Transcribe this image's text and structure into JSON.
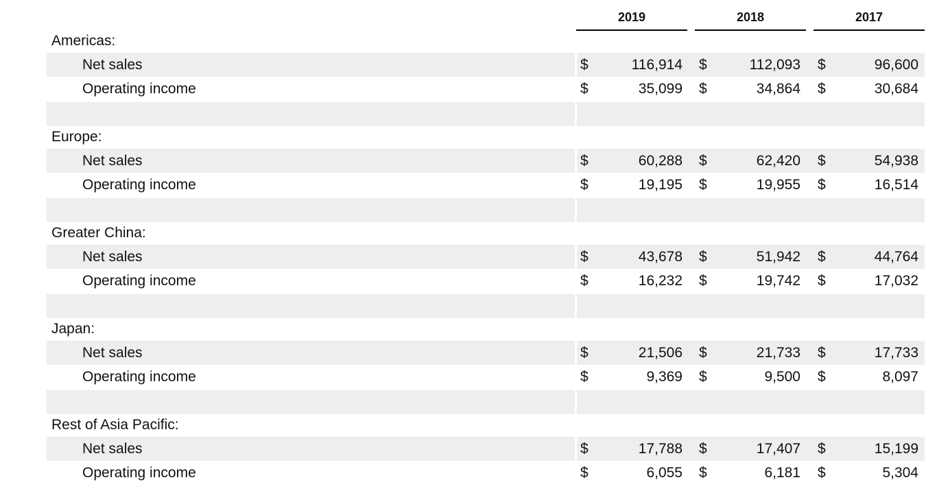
{
  "years": [
    "2019",
    "2018",
    "2017"
  ],
  "currency_symbol": "$",
  "regions": [
    {
      "name": "Americas:",
      "rows": [
        {
          "label": "Net sales",
          "values": [
            "116,914",
            "112,093",
            "96,600"
          ]
        },
        {
          "label": "Operating income",
          "values": [
            "35,099",
            "34,864",
            "30,684"
          ]
        }
      ]
    },
    {
      "name": "Europe:",
      "rows": [
        {
          "label": "Net sales",
          "values": [
            "60,288",
            "62,420",
            "54,938"
          ]
        },
        {
          "label": "Operating income",
          "values": [
            "19,195",
            "19,955",
            "16,514"
          ]
        }
      ]
    },
    {
      "name": "Greater China:",
      "rows": [
        {
          "label": "Net sales",
          "values": [
            "43,678",
            "51,942",
            "44,764"
          ]
        },
        {
          "label": "Operating income",
          "values": [
            "16,232",
            "19,742",
            "17,032"
          ]
        }
      ]
    },
    {
      "name": "Japan:",
      "rows": [
        {
          "label": "Net sales",
          "values": [
            "21,506",
            "21,733",
            "17,733"
          ]
        },
        {
          "label": "Operating income",
          "values": [
            "9,369",
            "9,500",
            "8,097"
          ]
        }
      ]
    },
    {
      "name": "Rest of Asia Pacific:",
      "rows": [
        {
          "label": "Net sales",
          "values": [
            "17,788",
            "17,407",
            "15,199"
          ]
        },
        {
          "label": "Operating income",
          "values": [
            "6,055",
            "6,181",
            "5,304"
          ]
        }
      ]
    }
  ]
}
